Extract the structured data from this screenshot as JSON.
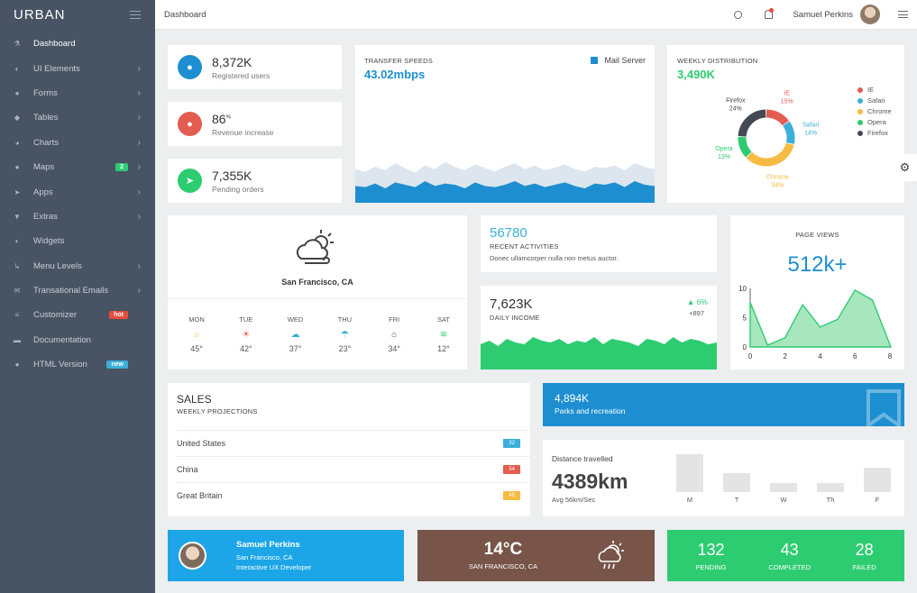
{
  "app": {
    "logo": "URBAN",
    "breadcrumb": "Dashboard",
    "user_name": "Samuel Perkins"
  },
  "sidebar": {
    "items": [
      {
        "label": "Dashboard",
        "icon": "flask-icon",
        "glyph": "⚗",
        "chevron": false
      },
      {
        "label": "UI Elements",
        "icon": "toggle-icon",
        "glyph": "◐",
        "chevron": true
      },
      {
        "label": "Forms",
        "icon": "drop-icon",
        "glyph": "●",
        "chevron": true
      },
      {
        "label": "Tables",
        "icon": "tag-icon",
        "glyph": "◆",
        "chevron": true
      },
      {
        "label": "Charts",
        "icon": "pie-icon",
        "glyph": "◕",
        "chevron": true
      },
      {
        "label": "Maps",
        "icon": "pin-icon",
        "glyph": "●",
        "chevron": true,
        "badge": "2",
        "badge_color": "#2ecc71"
      },
      {
        "label": "Apps",
        "icon": "send-icon",
        "glyph": "➤",
        "chevron": true
      },
      {
        "label": "Extras",
        "icon": "trophy-icon",
        "glyph": "▼",
        "chevron": true
      },
      {
        "label": "Widgets",
        "icon": "toggle-icon",
        "glyph": "◐",
        "chevron": false
      },
      {
        "label": "Menu Levels",
        "icon": "level-icon",
        "glyph": "↳",
        "chevron": true
      },
      {
        "label": "Transational Emails",
        "icon": "envelope-icon",
        "glyph": "✉",
        "chevron": true
      },
      {
        "label": "Customizer",
        "icon": "sliders-icon",
        "glyph": "≡",
        "chevron": false,
        "badge": "hot",
        "badge_color": "#e74c3c"
      },
      {
        "label": "Documentation",
        "icon": "folder-icon",
        "glyph": "▬",
        "chevron": false
      },
      {
        "label": "HTML Version",
        "icon": "circle-icon",
        "glyph": "●",
        "chevron": false,
        "badge": "new",
        "badge_color": "#3bafda"
      }
    ]
  },
  "stats": [
    {
      "value": "8,372K",
      "label": "Registered users",
      "color": "#1d8fd0",
      "icon": "microphone-icon",
      "glyph": "🎙"
    },
    {
      "value": "86",
      "sup": "%",
      "label": "Revenue increase",
      "color": "#e25d50",
      "icon": "drop-icon",
      "glyph": "💧"
    },
    {
      "value": "7,355K",
      "label": "Pending orders",
      "color": "#2ecc71",
      "icon": "send-icon",
      "glyph": "➤"
    }
  ],
  "transfer": {
    "title": "TRANSFER SPEEDS",
    "value": "43.02mbps",
    "legend": "Mail Server",
    "legend_color": "#1d8fd0"
  },
  "weekly": {
    "title": "WEEKLY DISTRIBUTION",
    "value": "3,490K",
    "slices": [
      {
        "name": "IE",
        "pct": "15%",
        "value": 15,
        "color": "#e25d50"
      },
      {
        "name": "Safari",
        "pct": "14%",
        "value": 14,
        "color": "#3bafda"
      },
      {
        "name": "Chrome",
        "pct": "34%",
        "value": 34,
        "color": "#f6bb42"
      },
      {
        "name": "Opera",
        "pct": "13%",
        "value": 13,
        "color": "#2ecc71"
      },
      {
        "name": "Firefox",
        "pct": "24%",
        "value": 24,
        "color": "#434a54"
      }
    ]
  },
  "weather": {
    "city": "San Francisco, CA",
    "days": [
      {
        "day": "MON",
        "temp": "45°",
        "glyph": "☼",
        "color": "#f6bb42",
        "icon": "sun-cloud-icon"
      },
      {
        "day": "TUE",
        "temp": "42°",
        "glyph": "☀",
        "color": "#e25d50",
        "icon": "sun-icon"
      },
      {
        "day": "WED",
        "temp": "37°",
        "glyph": "☁",
        "color": "#3bafda",
        "icon": "cloud-icon"
      },
      {
        "day": "THU",
        "temp": "23°",
        "glyph": "☂",
        "color": "#3bafda",
        "icon": "rain-icon"
      },
      {
        "day": "FRI",
        "temp": "34°",
        "glyph": "⌂",
        "color": "#555555",
        "icon": "house-icon"
      },
      {
        "day": "SAT",
        "temp": "12°",
        "glyph": "≋",
        "color": "#2ecc71",
        "icon": "wind-icon"
      }
    ]
  },
  "activities": {
    "value": "56780",
    "title": "RECENT ACTIVITIES",
    "text": "Donec ullamcorper nulla non metus auctor."
  },
  "income": {
    "value": "7,623K",
    "title": "DAILY INCOME",
    "change": "6%",
    "sub": "+897"
  },
  "pageviews": {
    "title": "PAGE VIEWS",
    "value": "512k+"
  },
  "sales": {
    "title": "SALES",
    "subtitle": "WEEKLY PROJECTIONS",
    "rows": [
      {
        "name": "United States",
        "value": "32",
        "color": "#3bafda"
      },
      {
        "name": "China",
        "value": "54",
        "color": "#e25d50"
      },
      {
        "name": "Great Britain",
        "value": "45",
        "color": "#f6bb42"
      }
    ]
  },
  "parks": {
    "value": "4,894K",
    "label": "Parks and recreation"
  },
  "distance": {
    "title": "Distance travelled",
    "value": "4389km",
    "sub": "Avg 56km/Sec"
  },
  "profile": {
    "name": "Samuel Perkins",
    "city": "San Francisco, CA",
    "role": "Interactive UX Developer"
  },
  "weather_card": {
    "temp": "14°C",
    "city": "SAN FRANCISCO, CA"
  },
  "tasks": [
    {
      "value": "132",
      "label": "PENDING"
    },
    {
      "value": "43",
      "label": "COMPLETED"
    },
    {
      "value": "28",
      "label": "FAILED"
    }
  ],
  "chart_data": [
    {
      "type": "pie",
      "title": "WEEKLY DISTRIBUTION",
      "categories": [
        "IE",
        "Safari",
        "Chrome",
        "Opera",
        "Firefox"
      ],
      "values": [
        15,
        14,
        34,
        13,
        24
      ],
      "legend": "right"
    },
    {
      "type": "area",
      "title": "PAGE VIEWS",
      "x": [
        0,
        1,
        2,
        3,
        4,
        5,
        6,
        7,
        8
      ],
      "y": [
        7.6,
        0.3,
        1.6,
        7.2,
        3.4,
        4.7,
        9.7,
        8.0,
        0.4
      ],
      "xticks": [
        "0",
        "2",
        "4",
        "6",
        "8"
      ],
      "yticks": [
        "0",
        "5",
        "10"
      ],
      "xlim": [
        0,
        8
      ],
      "ylim": [
        0,
        10
      ],
      "color": "#2ecc71"
    },
    {
      "type": "bar",
      "title": "Distance travelled",
      "categories": [
        "M",
        "T",
        "W",
        "Th",
        "F"
      ],
      "values": [
        10,
        5,
        2.5,
        2.5,
        6.5
      ],
      "ylim": [
        0,
        10
      ]
    },
    {
      "type": "area",
      "title": "TRANSFER SPEEDS",
      "series": [
        {
          "values": [
            28,
            26,
            30,
            27,
            33,
            29,
            25,
            31,
            28,
            34,
            30,
            27,
            32,
            29,
            26,
            30,
            33,
            28,
            31,
            27,
            29,
            32,
            28,
            26,
            30,
            29,
            31,
            27,
            33,
            30,
            28
          ]
        },
        {
          "values": [
            14,
            13,
            16,
            12,
            17,
            15,
            13,
            18,
            14,
            16,
            15,
            12,
            17,
            14,
            13,
            15,
            18,
            14,
            16,
            13,
            15,
            17,
            14,
            12,
            16,
            15,
            17,
            13,
            18,
            15,
            14
          ]
        }
      ],
      "ylim": [
        0,
        45
      ]
    },
    {
      "type": "area",
      "title": "DAILY INCOME",
      "series": [
        {
          "values": [
            14,
            16,
            13,
            17,
            15,
            14,
            18,
            16,
            15,
            17,
            14,
            16,
            15,
            18,
            14,
            17,
            16,
            15,
            13,
            17,
            16,
            14,
            18,
            15,
            17,
            16,
            14,
            15
          ]
        }
      ],
      "ylim": [
        0,
        30
      ],
      "color": "#2ecc71"
    }
  ]
}
